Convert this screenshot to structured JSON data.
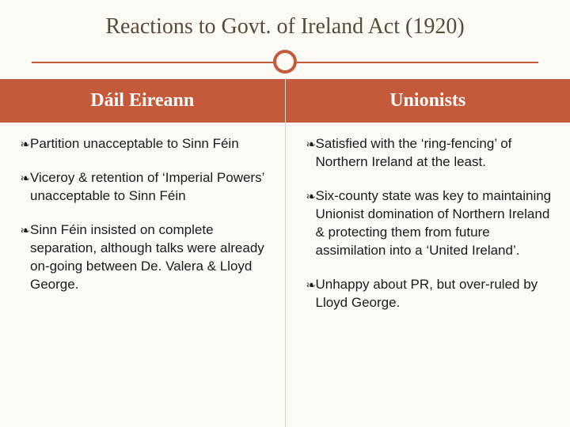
{
  "title": "Reactions to Govt. of Ireland Act (1920)",
  "colors": {
    "background": "#fcfaf5",
    "accent": "#c45a3a",
    "title_text": "#5a4a3a",
    "header_text": "#ffffff",
    "body_text": "#1a1a1a",
    "separator": "#d8d4c8"
  },
  "typography": {
    "title_fontsize": 28,
    "header_fontsize": 24,
    "body_fontsize": 17,
    "title_family": "Georgia, serif",
    "body_family": "Arial, sans-serif"
  },
  "columns": [
    {
      "header": "Dáil Eireann",
      "bullets": [
        "Partition unacceptable to Sinn Féin",
        "Viceroy & retention of ‘Imperial Powers’ unacceptable to Sinn Féin",
        "Sinn Féin insisted on complete separation, although talks were already on-going between De. Valera & Lloyd George."
      ]
    },
    {
      "header": "Unionists",
      "bullets": [
        "Satisfied with the ‘ring-fencing’ of Northern Ireland at the least.",
        "Six-county state was key to maintaining Unionist domination of Northern Ireland & protecting them from future assimilation into a ‘United Ireland’.",
        "Unhappy about PR, but over-ruled by Lloyd George."
      ]
    }
  ],
  "bullet_glyph": "་"
}
